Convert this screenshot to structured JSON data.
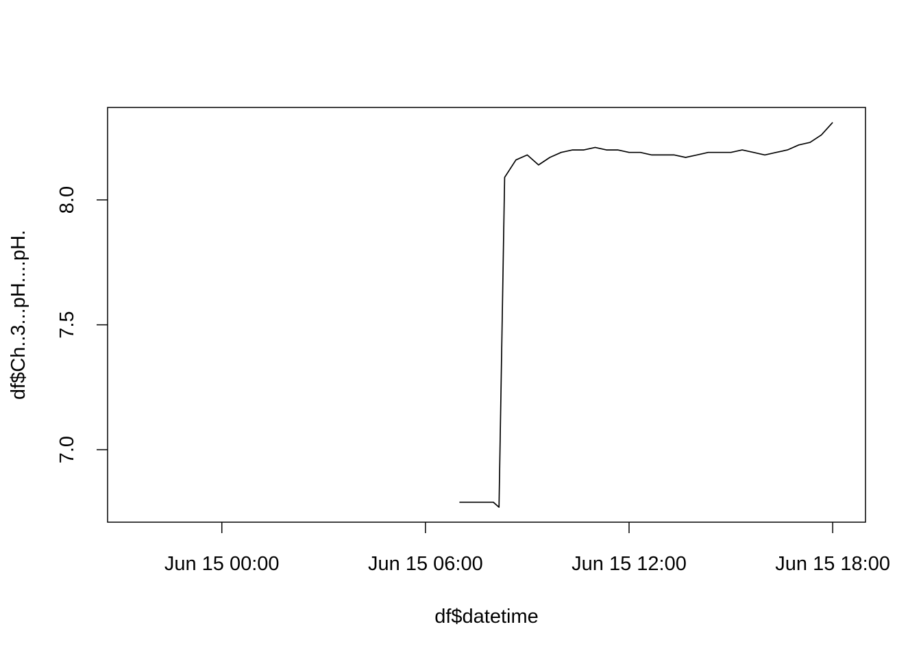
{
  "chart_data": {
    "type": "line",
    "title": "",
    "xlabel": "df$datetime",
    "ylabel": "df$Ch..3...pH....pH.",
    "x_ticks": [
      "Jun 15 00:00",
      "Jun 15 06:00",
      "Jun 15 12:00",
      "Jun 15 18:00"
    ],
    "y_ticks": [
      "7.0",
      "7.5",
      "8.0"
    ],
    "xlim": [
      "2019-06-14 20:38",
      "2019-06-15 18:58"
    ],
    "ylim": [
      6.71,
      8.37
    ],
    "grid": false,
    "line_color": "#000000",
    "series": [
      {
        "x": [
          "2019-06-15 07:00",
          "2019-06-15 07:20",
          "2019-06-15 07:40",
          "2019-06-15 08:00",
          "2019-06-15 08:10",
          "2019-06-15 08:20",
          "2019-06-15 08:40",
          "2019-06-15 09:00",
          "2019-06-15 09:20",
          "2019-06-15 09:40",
          "2019-06-15 10:00",
          "2019-06-15 10:20",
          "2019-06-15 10:40",
          "2019-06-15 11:00",
          "2019-06-15 11:20",
          "2019-06-15 11:40",
          "2019-06-15 12:00",
          "2019-06-15 12:20",
          "2019-06-15 12:40",
          "2019-06-15 13:00",
          "2019-06-15 13:20",
          "2019-06-15 13:40",
          "2019-06-15 14:00",
          "2019-06-15 14:20",
          "2019-06-15 14:40",
          "2019-06-15 15:00",
          "2019-06-15 15:20",
          "2019-06-15 15:40",
          "2019-06-15 16:00",
          "2019-06-15 16:20",
          "2019-06-15 16:40",
          "2019-06-15 17:00",
          "2019-06-15 17:20",
          "2019-06-15 17:40",
          "2019-06-15 18:00"
        ],
        "values": [
          6.79,
          6.79,
          6.79,
          6.79,
          6.77,
          8.09,
          8.16,
          8.18,
          8.14,
          8.17,
          8.19,
          8.2,
          8.2,
          8.21,
          8.2,
          8.2,
          8.19,
          8.19,
          8.18,
          8.18,
          8.18,
          8.17,
          8.18,
          8.19,
          8.19,
          8.19,
          8.2,
          8.19,
          8.18,
          8.19,
          8.2,
          8.22,
          8.23,
          8.26,
          8.31
        ]
      }
    ]
  }
}
